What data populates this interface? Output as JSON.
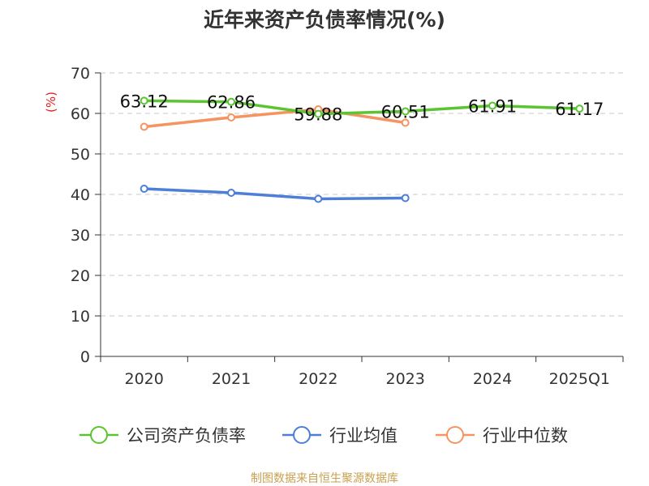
{
  "chart_data": {
    "type": "line",
    "title": "近年来资产负债率情况(%)",
    "ylabel": "(%)",
    "ylim": [
      0,
      70
    ],
    "yticks": [
      0,
      10,
      20,
      30,
      40,
      50,
      60,
      70
    ],
    "grid": true,
    "legend_position": "bottom",
    "categories": [
      "2020",
      "2021",
      "2022",
      "2023",
      "2024",
      "2025Q1"
    ],
    "series": [
      {
        "name": "公司资产负债率",
        "color": "#5ac531",
        "values": [
          63.12,
          62.86,
          59.88,
          60.51,
          61.91,
          61.17
        ],
        "labels": [
          "63.12",
          "62.86",
          "59.88",
          "60.51",
          "61.91",
          "61.17"
        ]
      },
      {
        "name": "行业均值",
        "color": "#4e7fd8",
        "values": [
          41.4,
          40.4,
          38.9,
          39.1,
          null,
          null
        ]
      },
      {
        "name": "行业中位数",
        "color": "#f59460",
        "values": [
          56.7,
          59.0,
          61.0,
          57.7,
          null,
          null
        ]
      }
    ]
  },
  "source": "制图数据来自恒生聚源数据库"
}
